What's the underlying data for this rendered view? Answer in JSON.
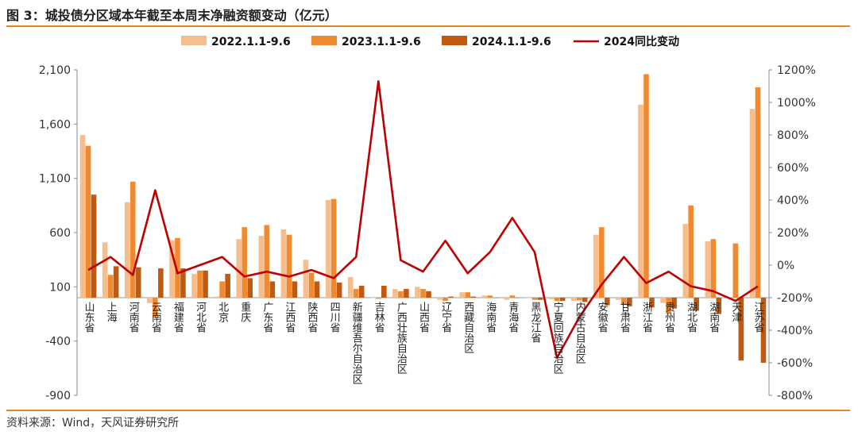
{
  "figure": {
    "title": "图 3：城投债分区域本年截至本周末净融资额变动（亿元）",
    "source": "资料来源：Wind，天风证券研究所"
  },
  "chart_data": {
    "type": "bar",
    "categories": [
      "山东省",
      "上海",
      "河南省",
      "云南省",
      "福建省",
      "河北省",
      "北京",
      "重庆",
      "广东省",
      "江西省",
      "陕西省",
      "四川省",
      "新疆维吾尔自治区",
      "吉林省",
      "广西壮族自治区",
      "山西省",
      "辽宁省",
      "西藏自治区",
      "海南省",
      "青海省",
      "黑龙江省",
      "宁夏回族自治区",
      "内蒙古自治区",
      "安徽省",
      "甘肃省",
      "浙江省",
      "贵州省",
      "湖北省",
      "湖南省",
      "天津",
      "江苏省"
    ],
    "series": [
      {
        "name": "2022.1.1-9.6",
        "type": "bar",
        "axis": "left",
        "color": "#F6BE8F",
        "values": [
          1500,
          510,
          880,
          -50,
          530,
          220,
          10,
          540,
          570,
          630,
          350,
          900,
          190,
          0,
          80,
          100,
          -20,
          50,
          20,
          -20,
          0,
          -15,
          -30,
          580,
          -20,
          1780,
          -50,
          680,
          520,
          0,
          1740
        ]
      },
      {
        "name": "2023.1.1-9.6",
        "type": "bar",
        "axis": "left",
        "color": "#F08A30",
        "values": [
          1400,
          210,
          1070,
          -180,
          550,
          250,
          150,
          650,
          670,
          580,
          230,
          910,
          80,
          -10,
          60,
          80,
          -30,
          50,
          20,
          20,
          -20,
          -30,
          -25,
          650,
          -60,
          2060,
          -150,
          850,
          540,
          500,
          1940
        ]
      },
      {
        "name": "2024.1.1-9.6",
        "type": "bar",
        "axis": "left",
        "color": "#C05A12",
        "values": [
          950,
          290,
          280,
          270,
          270,
          250,
          220,
          180,
          150,
          150,
          150,
          140,
          110,
          110,
          80,
          60,
          10,
          10,
          0,
          0,
          -20,
          -30,
          -40,
          -70,
          -80,
          -90,
          -100,
          -120,
          -150,
          -580,
          -600
        ]
      },
      {
        "name": "2024同比变动",
        "type": "line",
        "axis": "right",
        "color": "#C00000",
        "values": [
          -30,
          50,
          -60,
          460,
          -50,
          0,
          50,
          -70,
          -40,
          -70,
          -30,
          -80,
          50,
          1130,
          30,
          -40,
          150,
          -50,
          80,
          290,
          80,
          -570,
          -320,
          -120,
          50,
          -110,
          -40,
          -130,
          -160,
          -220,
          -130
        ]
      }
    ],
    "y_left": {
      "ylim": [
        -900,
        2100
      ],
      "ticks": [
        -900,
        -400,
        100,
        600,
        1100,
        1600,
        2100
      ],
      "tick_labels": [
        "-900",
        "-400",
        "100",
        "600",
        "1,100",
        "1,600",
        "2,100"
      ]
    },
    "y_right": {
      "ylim": [
        -800,
        1200
      ],
      "ticks": [
        -800,
        -600,
        -400,
        -200,
        0,
        200,
        400,
        600,
        800,
        1000,
        1200
      ],
      "tick_labels": [
        "-800%",
        "-600%",
        "-400%",
        "-200%",
        "0%",
        "200%",
        "400%",
        "600%",
        "800%",
        "1000%",
        "1200%"
      ]
    },
    "grid": false,
    "legend": "top"
  }
}
